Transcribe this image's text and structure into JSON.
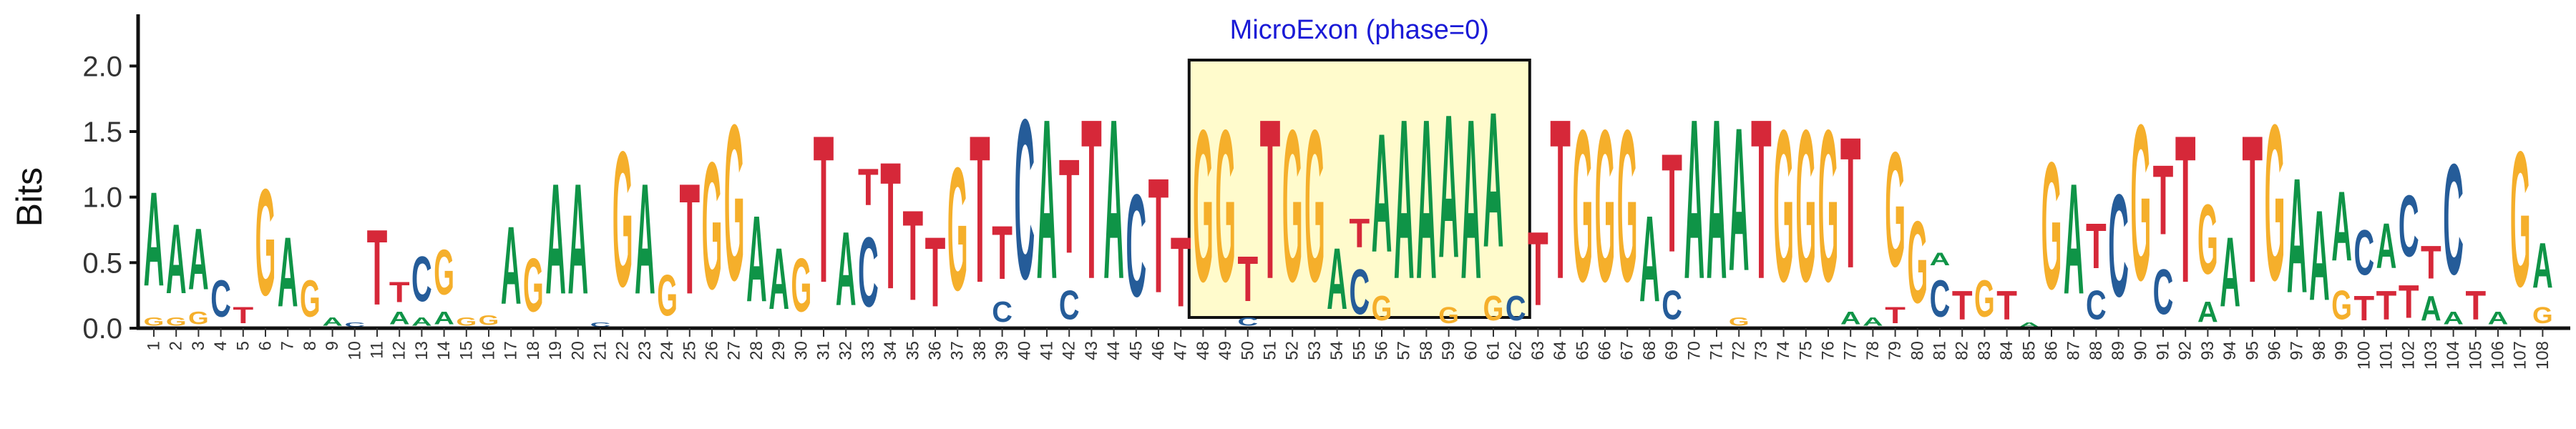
{
  "chart_data": {
    "type": "sequence-logo",
    "ylabel": "Bits",
    "ylim": [
      0,
      2.1
    ],
    "yticks": [
      "0.0",
      "0.5",
      "1.0",
      "1.5",
      "2.0"
    ],
    "ytick_values": [
      0,
      0.5,
      1.0,
      1.5,
      2.0
    ],
    "positions": [
      "1",
      "2",
      "3",
      "4",
      "5",
      "6",
      "7",
      "8",
      "9",
      "10",
      "11",
      "12",
      "13",
      "14",
      "15",
      "16",
      "17",
      "18",
      "19",
      "20",
      "21",
      "22",
      "23",
      "24",
      "25",
      "26",
      "27",
      "28",
      "29",
      "30",
      "31",
      "32",
      "33",
      "34",
      "35",
      "36",
      "37",
      "38",
      "39",
      "40",
      "41",
      "42",
      "43",
      "44",
      "45",
      "46",
      "47",
      "48",
      "49",
      "50",
      "51",
      "52",
      "53",
      "54",
      "55",
      "56",
      "57",
      "58",
      "59",
      "60",
      "61",
      "62",
      "63",
      "64",
      "65",
      "66",
      "67",
      "68",
      "69",
      "70",
      "71",
      "72",
      "73",
      "74",
      "75",
      "76",
      "77",
      "78",
      "79",
      "80",
      "81",
      "82",
      "83",
      "84",
      "85",
      "86",
      "87",
      "88",
      "89",
      "90",
      "91",
      "92",
      "93",
      "94",
      "95",
      "96",
      "97",
      "98",
      "99",
      "100",
      "101",
      "102",
      "103",
      "104",
      "105",
      "106",
      "107",
      "108"
    ],
    "colors": {
      "A": "#0F9447",
      "C": "#255C99",
      "G": "#F5AF2B",
      "T": "#D62839"
    },
    "logo": [
      [
        [
          "G",
          0.1
        ],
        [
          "A",
          1.15
        ]
      ],
      [
        [
          "G",
          0.1
        ],
        [
          "A",
          0.85
        ]
      ],
      [
        [
          "G",
          0.15
        ],
        [
          "A",
          0.75
        ]
      ],
      [
        [
          "C",
          0.45
        ]
      ],
      [
        [
          "T",
          0.2
        ]
      ],
      [
        [
          "G",
          1.3
        ]
      ],
      [
        [
          "A",
          0.85
        ]
      ],
      [
        [
          "G",
          0.45
        ]
      ],
      [
        [
          "A",
          0.1
        ]
      ],
      [
        [
          "C",
          0.05
        ]
      ],
      [
        [
          "T",
          0.92
        ]
      ],
      [
        [
          "A",
          0.15
        ],
        [
          "T",
          0.25
        ]
      ],
      [
        [
          "A",
          0.1
        ],
        [
          "C",
          0.55
        ]
      ],
      [
        [
          "A",
          0.15
        ],
        [
          "G",
          0.55
        ]
      ],
      [
        [
          "G",
          0.1
        ]
      ],
      [
        [
          "G",
          0.12
        ]
      ],
      [
        [
          "A",
          0.95
        ]
      ],
      [
        [
          "G",
          0.65
        ]
      ],
      [
        [
          "A",
          1.35
        ]
      ],
      [
        [
          "A",
          1.35
        ]
      ],
      [
        [
          "C",
          0.05
        ]
      ],
      [
        [
          "G",
          1.65
        ]
      ],
      [
        [
          "A",
          1.35
        ]
      ],
      [
        [
          "G",
          0.5
        ]
      ],
      [
        [
          "T",
          1.35
        ]
      ],
      [
        [
          "G",
          1.55
        ]
      ],
      [
        [
          "G",
          1.9
        ]
      ],
      [
        [
          "A",
          1.05
        ]
      ],
      [
        [
          "A",
          0.75
        ]
      ],
      [
        [
          "G",
          0.65
        ]
      ],
      [
        [
          "T",
          1.8
        ]
      ],
      [
        [
          "A",
          0.9
        ]
      ],
      [
        [
          "C",
          0.85
        ],
        [
          "T",
          0.45
        ]
      ],
      [
        [
          "T",
          1.55
        ]
      ],
      [
        [
          "T",
          1.1
        ]
      ],
      [
        [
          "T",
          0.85
        ]
      ],
      [
        [
          "G",
          1.5
        ]
      ],
      [
        [
          "T",
          1.8
        ]
      ],
      [
        [
          "C",
          0.25
        ],
        [
          "T",
          0.65
        ]
      ],
      [
        [
          "C",
          1.95
        ]
      ],
      [
        [
          "A",
          1.95
        ]
      ],
      [
        [
          "C",
          0.35
        ],
        [
          "T",
          1.15
        ]
      ],
      [
        [
          "T",
          1.95
        ]
      ],
      [
        [
          "A",
          1.95
        ]
      ],
      [
        [
          "C",
          1.25
        ]
      ],
      [
        [
          "T",
          1.4
        ]
      ],
      [
        [
          "T",
          0.85
        ]
      ],
      [
        [
          "G",
          1.85
        ]
      ],
      [
        [
          "G",
          1.85
        ]
      ],
      [
        [
          "C",
          0.1
        ],
        [
          "T",
          0.55
        ]
      ],
      [
        [
          "T",
          1.95
        ]
      ],
      [
        [
          "G",
          1.85
        ]
      ],
      [
        [
          "G",
          1.85
        ]
      ],
      [
        [
          "A",
          0.75
        ]
      ],
      [
        [
          "C",
          0.55
        ],
        [
          "T",
          0.35
        ]
      ],
      [
        [
          "G",
          0.3
        ],
        [
          "A",
          1.45
        ]
      ],
      [
        [
          "A",
          1.95
        ]
      ],
      [
        [
          "A",
          1.95
        ]
      ],
      [
        [
          "G",
          0.2
        ],
        [
          "A",
          1.75
        ]
      ],
      [
        [
          "A",
          1.95
        ]
      ],
      [
        [
          "G",
          0.3
        ],
        [
          "A",
          1.65
        ]
      ],
      [
        [
          "C",
          0.3
        ]
      ],
      [
        [
          "T",
          0.9
        ]
      ],
      [
        [
          "T",
          1.95
        ]
      ],
      [
        [
          "G",
          1.85
        ]
      ],
      [
        [
          "G",
          1.85
        ]
      ],
      [
        [
          "G",
          1.85
        ]
      ],
      [
        [
          "A",
          1.05
        ]
      ],
      [
        [
          "C",
          0.35
        ],
        [
          "T",
          1.2
        ]
      ],
      [
        [
          "A",
          1.95
        ]
      ],
      [
        [
          "A",
          1.95
        ]
      ],
      [
        [
          "G",
          0.1
        ],
        [
          "A",
          1.75
        ]
      ],
      [
        [
          "T",
          1.95
        ]
      ],
      [
        [
          "G",
          1.85
        ]
      ],
      [
        [
          "G",
          1.85
        ]
      ],
      [
        [
          "G",
          1.85
        ]
      ],
      [
        [
          "A",
          0.15
        ],
        [
          "T",
          1.6
        ]
      ],
      [
        [
          "A",
          0.1
        ]
      ],
      [
        [
          "T",
          0.2
        ],
        [
          "G",
          1.4
        ]
      ],
      [
        [
          "G",
          1.0
        ]
      ],
      [
        [
          "C",
          0.45
        ],
        [
          "A",
          0.15
        ]
      ],
      [
        [
          "T",
          0.35
        ]
      ],
      [
        [
          "G",
          0.45
        ]
      ],
      [
        [
          "T",
          0.35
        ]
      ],
      [
        [
          "A",
          0.05
        ]
      ],
      [
        [
          "G",
          1.55
        ]
      ],
      [
        [
          "A",
          1.35
        ]
      ],
      [
        [
          "C",
          0.35
        ],
        [
          "T",
          0.55
        ]
      ],
      [
        [
          "C",
          1.25
        ]
      ],
      [
        [
          "G",
          1.9
        ]
      ],
      [
        [
          "C",
          0.55
        ],
        [
          "T",
          0.85
        ]
      ],
      [
        [
          "T",
          1.8
        ]
      ],
      [
        [
          "A",
          0.25
        ],
        [
          "G",
          0.85
        ]
      ],
      [
        [
          "A",
          0.85
        ]
      ],
      [
        [
          "T",
          1.8
        ]
      ],
      [
        [
          "G",
          1.9
        ]
      ],
      [
        [
          "A",
          1.4
        ]
      ],
      [
        [
          "A",
          1.1
        ]
      ],
      [
        [
          "G",
          0.35
        ],
        [
          "A",
          0.85
        ]
      ],
      [
        [
          "T",
          0.3
        ],
        [
          "C",
          0.55
        ]
      ],
      [
        [
          "T",
          0.35
        ],
        [
          "A",
          0.55
        ]
      ],
      [
        [
          "T",
          0.4
        ],
        [
          "C",
          0.75
        ]
      ],
      [
        [
          "A",
          0.3
        ],
        [
          "T",
          0.4
        ]
      ],
      [
        [
          "A",
          0.15
        ],
        [
          "C",
          1.35
        ]
      ],
      [
        [
          "T",
          0.35
        ]
      ],
      [
        [
          "A",
          0.15
        ]
      ],
      [
        [
          "G",
          1.65
        ]
      ],
      [
        [
          "G",
          0.2
        ],
        [
          "A",
          0.55
        ]
      ]
    ],
    "annotation": {
      "label": "MicroExon (phase=0)",
      "start": "48",
      "end": "62",
      "color": "#1a1ad6",
      "fill": "#FFFBCC"
    }
  }
}
